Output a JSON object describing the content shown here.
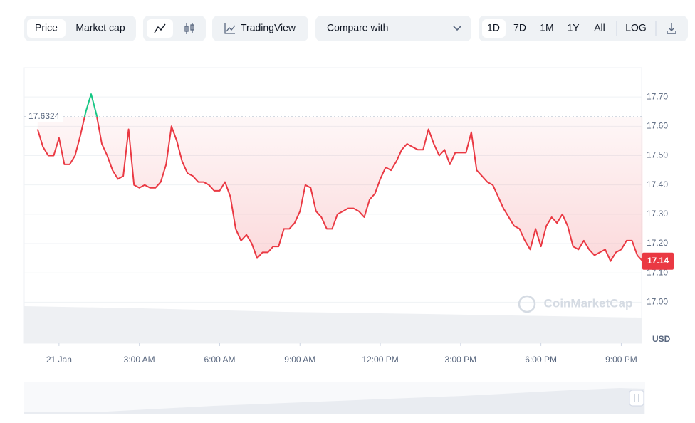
{
  "toolbar": {
    "price": "Price",
    "market_cap": "Market cap",
    "tradingview": "TradingView",
    "compare": "Compare with",
    "ranges": [
      "1D",
      "7D",
      "1M",
      "1Y",
      "All"
    ],
    "log": "LOG"
  },
  "chart_data": {
    "type": "line",
    "x": [
      -0.8,
      -0.6,
      -0.4,
      -0.2,
      0.0,
      0.2,
      0.4,
      0.6,
      0.8,
      1.0,
      1.2,
      1.4,
      1.6,
      1.8,
      2.0,
      2.2,
      2.4,
      2.6,
      2.8,
      3.0,
      3.2,
      3.4,
      3.6,
      3.8,
      4.0,
      4.2,
      4.4,
      4.6,
      4.8,
      5.0,
      5.2,
      5.4,
      5.6,
      5.8,
      6.0,
      6.2,
      6.4,
      6.6,
      6.8,
      7.0,
      7.2,
      7.4,
      7.6,
      7.8,
      8.0,
      8.2,
      8.4,
      8.6,
      8.8,
      9.0,
      9.2,
      9.4,
      9.6,
      9.8,
      10.0,
      10.2,
      10.4,
      10.6,
      10.8,
      11.0,
      11.2,
      11.4,
      11.6,
      11.8,
      12.0,
      12.2,
      12.4,
      12.6,
      12.8,
      13.0,
      13.2,
      13.4,
      13.6,
      13.8,
      14.0,
      14.2,
      14.4,
      14.6,
      14.8,
      15.0,
      15.2,
      15.4,
      15.6,
      15.8,
      16.0,
      16.2,
      16.4,
      16.6,
      16.8,
      17.0,
      17.2,
      17.4,
      17.6,
      17.8,
      18.0,
      18.2,
      18.4,
      18.6,
      18.8,
      19.0,
      19.2,
      19.4,
      19.6,
      19.8,
      20.0,
      20.2,
      20.4,
      20.6,
      20.8,
      21.0,
      21.2,
      21.4,
      21.6,
      21.8
    ],
    "series": [
      {
        "name": "Price",
        "color": "#ea3943",
        "up_color": "#16c784",
        "values": [
          17.59,
          17.53,
          17.5,
          17.5,
          17.56,
          17.47,
          17.47,
          17.5,
          17.57,
          17.65,
          17.71,
          17.64,
          17.54,
          17.5,
          17.45,
          17.42,
          17.43,
          17.59,
          17.4,
          17.39,
          17.4,
          17.39,
          17.39,
          17.41,
          17.47,
          17.6,
          17.55,
          17.48,
          17.44,
          17.43,
          17.41,
          17.41,
          17.4,
          17.38,
          17.38,
          17.41,
          17.36,
          17.25,
          17.21,
          17.23,
          17.2,
          17.15,
          17.17,
          17.17,
          17.19,
          17.19,
          17.25,
          17.25,
          17.27,
          17.31,
          17.4,
          17.39,
          17.31,
          17.29,
          17.25,
          17.25,
          17.3,
          17.31,
          17.32,
          17.32,
          17.31,
          17.29,
          17.35,
          17.37,
          17.42,
          17.46,
          17.45,
          17.48,
          17.52,
          17.54,
          17.53,
          17.52,
          17.52,
          17.59,
          17.54,
          17.5,
          17.52,
          17.47,
          17.51,
          17.51,
          17.51,
          17.58,
          17.45,
          17.43,
          17.41,
          17.4,
          17.36,
          17.32,
          17.29,
          17.26,
          17.25,
          17.21,
          17.18,
          17.25,
          17.19,
          17.26,
          17.29,
          17.27,
          17.3,
          17.26,
          17.19,
          17.18,
          17.21,
          17.18,
          17.16,
          17.17,
          17.18,
          17.14,
          17.17,
          17.18,
          17.21,
          17.21,
          17.16,
          17.14
        ]
      }
    ],
    "reference": 17.6324,
    "xlim": [
      -1.3,
      21.76
    ],
    "xticks": [
      {
        "value": 0,
        "label": "21 Jan"
      },
      {
        "value": 3,
        "label": "3:00 AM"
      },
      {
        "value": 6,
        "label": "6:00 AM"
      },
      {
        "value": 9,
        "label": "9:00 AM"
      },
      {
        "value": 12,
        "label": "12:00 PM"
      },
      {
        "value": 15,
        "label": "3:00 PM"
      },
      {
        "value": 18,
        "label": "6:00 PM"
      },
      {
        "value": 21,
        "label": "9:00 PM"
      }
    ],
    "ylim": [
      16.86,
      17.8
    ],
    "yticks": [
      {
        "value": 17.0,
        "label": "17.00"
      },
      {
        "value": 17.1,
        "label": "17.10"
      },
      {
        "value": 17.2,
        "label": "17.20"
      },
      {
        "value": 17.3,
        "label": "17.30"
      },
      {
        "value": 17.4,
        "label": "17.40"
      },
      {
        "value": 17.5,
        "label": "17.50"
      },
      {
        "value": 17.6,
        "label": "17.60"
      },
      {
        "value": 17.7,
        "label": "17.70"
      }
    ],
    "y_label": "USD",
    "watermark": "CoinMarketCap",
    "grid": true
  }
}
